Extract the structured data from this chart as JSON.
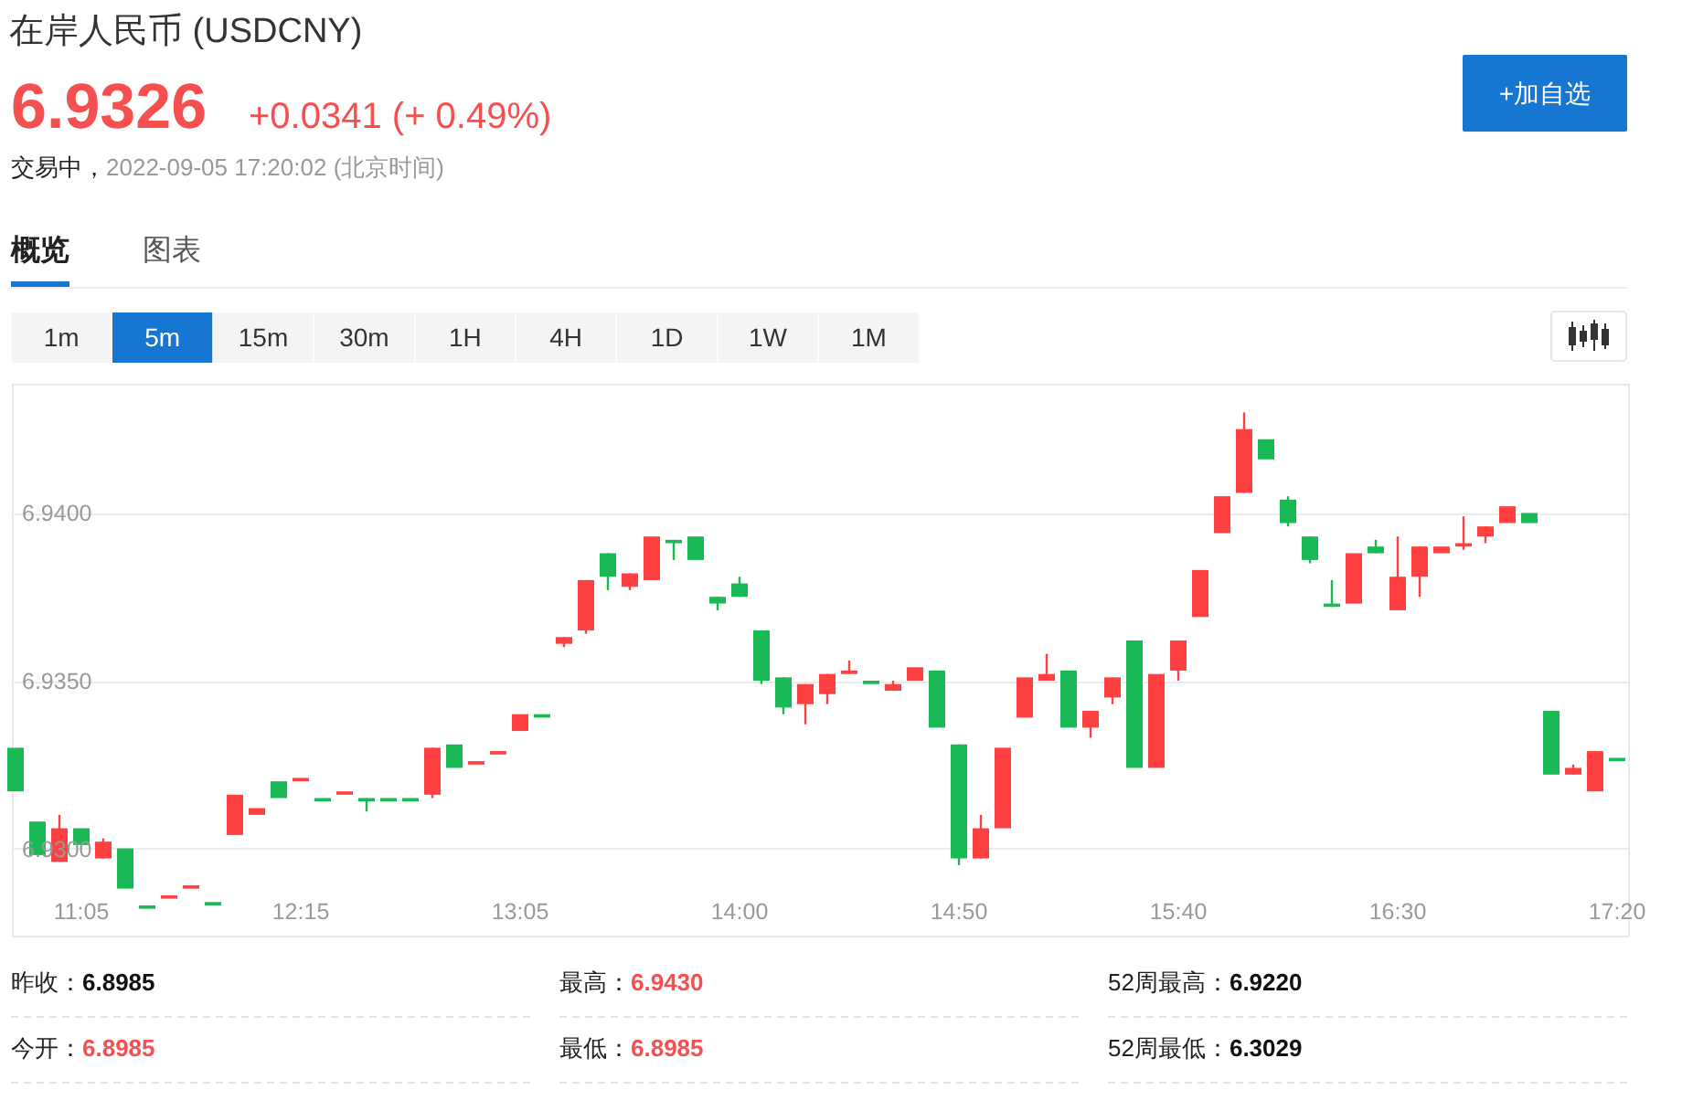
{
  "chart_data": {
    "type": "candlestick",
    "title": "在岸人民币 (USDCNY)",
    "subtitle": "交易中，2022-09-05 17:20:02 (北京时间)",
    "categories": [
      null,
      null,
      null,
      "11:05",
      null,
      null,
      null,
      null,
      null,
      null,
      null,
      null,
      null,
      "12:15",
      null,
      null,
      null,
      null,
      null,
      null,
      null,
      null,
      null,
      "13:05",
      null,
      null,
      null,
      null,
      null,
      null,
      null,
      null,
      null,
      "14:00",
      null,
      null,
      null,
      null,
      null,
      null,
      null,
      null,
      null,
      "14:50",
      null,
      null,
      null,
      null,
      null,
      null,
      null,
      null,
      null,
      "15:40",
      null,
      null,
      null,
      null,
      null,
      null,
      null,
      null,
      null,
      "16:30",
      null,
      null,
      null,
      null,
      null,
      null,
      null,
      null,
      null,
      "17:20"
    ],
    "ohlc": [
      [
        6.933,
        6.933,
        6.9317,
        6.9317
      ],
      [
        6.9308,
        6.9308,
        6.9298,
        6.9298
      ],
      [
        6.9296,
        6.931,
        6.9296,
        6.9306
      ],
      [
        6.9306,
        6.9306,
        6.9301,
        6.9301
      ],
      [
        6.9297,
        6.9303,
        6.9297,
        6.9302
      ],
      [
        6.93,
        6.93,
        6.9288,
        6.9288
      ],
      [
        6.9283,
        6.9283,
        6.9282,
        6.9282
      ],
      [
        6.9285,
        6.9286,
        6.9285,
        6.9286
      ],
      [
        6.9288,
        6.9289,
        6.9288,
        6.9289
      ],
      [
        6.9284,
        6.9284,
        6.9283,
        6.9283
      ],
      [
        6.9304,
        6.9316,
        6.9304,
        6.9316
      ],
      [
        6.931,
        6.9312,
        6.931,
        6.9312
      ],
      [
        6.932,
        6.932,
        6.9315,
        6.9315
      ],
      [
        6.932,
        6.9321,
        6.932,
        6.9321
      ],
      [
        6.9315,
        6.9315,
        6.9314,
        6.9314
      ],
      [
        6.9316,
        6.9317,
        6.9316,
        6.9317
      ],
      [
        6.9315,
        6.9315,
        6.9311,
        6.9314
      ],
      [
        6.9315,
        6.9315,
        6.9314,
        6.9314
      ],
      [
        6.9315,
        6.9315,
        6.9314,
        6.9314
      ],
      [
        6.9316,
        6.933,
        6.9315,
        6.933
      ],
      [
        6.9331,
        6.9331,
        6.9324,
        6.9324
      ],
      [
        6.9325,
        6.9326,
        6.9325,
        6.9326
      ],
      [
        6.9328,
        6.9329,
        6.9328,
        6.9329
      ],
      [
        6.9335,
        6.934,
        6.9335,
        6.934
      ],
      [
        6.934,
        6.934,
        6.9339,
        6.9339
      ],
      [
        6.9361,
        6.9363,
        6.936,
        6.9363
      ],
      [
        6.9365,
        6.938,
        6.9364,
        6.938
      ],
      [
        6.9388,
        6.9388,
        6.9377,
        6.9381
      ],
      [
        6.9378,
        6.9382,
        6.9377,
        6.9382
      ],
      [
        6.938,
        6.9393,
        6.938,
        6.9393
      ],
      [
        6.9392,
        6.9392,
        6.9386,
        6.9391
      ],
      [
        6.9393,
        6.9393,
        6.9386,
        6.9386
      ],
      [
        6.9375,
        6.9375,
        6.9371,
        6.9373
      ],
      [
        6.9379,
        6.9381,
        6.9375,
        6.9375
      ],
      [
        6.9365,
        6.9365,
        6.9349,
        6.935
      ],
      [
        6.9351,
        6.9351,
        6.934,
        6.9342
      ],
      [
        6.9343,
        6.9349,
        6.9337,
        6.9349
      ],
      [
        6.9346,
        6.9352,
        6.9343,
        6.9352
      ],
      [
        6.9352,
        6.9356,
        6.9352,
        6.9353
      ],
      [
        6.935,
        6.935,
        6.9349,
        6.9349
      ],
      [
        6.9347,
        6.935,
        6.9347,
        6.9349
      ],
      [
        6.935,
        6.9354,
        6.935,
        6.9354
      ],
      [
        6.9353,
        6.9353,
        6.9336,
        6.9336
      ],
      [
        6.9331,
        6.9331,
        6.9295,
        6.9297
      ],
      [
        6.9297,
        6.931,
        6.9297,
        6.9306
      ],
      [
        6.9306,
        6.933,
        6.9306,
        6.933
      ],
      [
        6.9339,
        6.9351,
        6.9339,
        6.9351
      ],
      [
        6.935,
        6.9358,
        6.935,
        6.9352
      ],
      [
        6.9353,
        6.9353,
        6.9336,
        6.9336
      ],
      [
        6.9336,
        6.9341,
        6.9333,
        6.9341
      ],
      [
        6.9345,
        6.9351,
        6.9343,
        6.9351
      ],
      [
        6.9362,
        6.9362,
        6.9324,
        6.9324
      ],
      [
        6.9324,
        6.9352,
        6.9324,
        6.9352
      ],
      [
        6.9353,
        6.9362,
        6.935,
        6.9362
      ],
      [
        6.9369,
        6.9383,
        6.9369,
        6.9383
      ],
      [
        6.9394,
        6.9405,
        6.9394,
        6.9405
      ],
      [
        6.9406,
        6.943,
        6.9406,
        6.9425
      ],
      [
        6.9422,
        6.9422,
        6.9416,
        6.9416
      ],
      [
        6.9404,
        6.9405,
        6.9396,
        6.9397
      ],
      [
        6.9393,
        6.9393,
        6.9385,
        6.9386
      ],
      [
        6.9373,
        6.938,
        6.9372,
        6.9372
      ],
      [
        6.9373,
        6.9388,
        6.9373,
        6.9388
      ],
      [
        6.939,
        6.9392,
        6.9388,
        6.9388
      ],
      [
        6.9371,
        6.9393,
        6.9371,
        6.9381
      ],
      [
        6.9381,
        6.939,
        6.9375,
        6.939
      ],
      [
        6.9388,
        6.939,
        6.9388,
        6.939
      ],
      [
        6.939,
        6.9399,
        6.9389,
        6.9391
      ],
      [
        6.9393,
        6.9396,
        6.9391,
        6.9396
      ],
      [
        6.9397,
        6.9402,
        6.9397,
        6.9402
      ],
      [
        6.94,
        6.94,
        6.9397,
        6.9397
      ],
      [
        6.9341,
        6.9341,
        6.9322,
        6.9322
      ],
      [
        6.9322,
        6.9325,
        6.9322,
        6.9324
      ],
      [
        6.9317,
        6.9329,
        6.9317,
        6.9329
      ],
      [
        6.9327,
        6.9327,
        6.9326,
        6.9326
      ]
    ],
    "colors": [
      "#19b955",
      "#19b955",
      "#ff4040",
      "#19b955",
      "#ff4040",
      "#19b955",
      "#19b955",
      "#ff4040",
      "#ff4040",
      "#19b955",
      "#ff4040",
      "#ff4040",
      "#19b955",
      "#ff4040",
      "#19b955",
      "#ff4040",
      "#19b955",
      "#19b955",
      "#19b955",
      "#ff4040",
      "#19b955",
      "#ff4040",
      "#ff4040",
      "#ff4040",
      "#19b955",
      "#ff4040",
      "#ff4040",
      "#19b955",
      "#ff4040",
      "#ff4040",
      "#19b955",
      "#19b955",
      "#19b955",
      "#19b955",
      "#19b955",
      "#19b955",
      "#ff4040",
      "#ff4040",
      "#ff4040",
      "#19b955",
      "#ff4040",
      "#ff4040",
      "#19b955",
      "#19b955",
      "#ff4040",
      "#ff4040",
      "#ff4040",
      "#ff4040",
      "#19b955",
      "#ff4040",
      "#ff4040",
      "#19b955",
      "#ff4040",
      "#ff4040",
      "#ff4040",
      "#ff4040",
      "#ff4040",
      "#19b955",
      "#19b955",
      "#19b955",
      "#19b955",
      "#ff4040",
      "#19b955",
      "#ff4040",
      "#ff4040",
      "#ff4040",
      "#ff4040",
      "#ff4040",
      "#ff4040",
      "#19b955",
      "#19b955",
      "#ff4040",
      "#ff4040",
      "#19b955"
    ],
    "ylim": [
      6.9274,
      6.9438
    ],
    "yticks": [
      {
        "value": 6.93,
        "label": "6.9300"
      },
      {
        "value": 6.935,
        "label": "6.9350"
      },
      {
        "value": 6.94,
        "label": "6.9400"
      }
    ],
    "grid": "y",
    "annotations": [
      "6.9326",
      "+0.0341 (+ 0.49%)",
      "+加自选",
      "概览",
      "图表",
      "1m",
      "5m",
      "15m",
      "30m",
      "1H",
      "4H",
      "1D",
      "1W",
      "1M",
      "昨收：6.8985",
      "最高：6.9430",
      "52周最高：6.9220",
      "今开：6.8985",
      "最低：6.8985",
      "52周最低：6.3029"
    ]
  }
}
